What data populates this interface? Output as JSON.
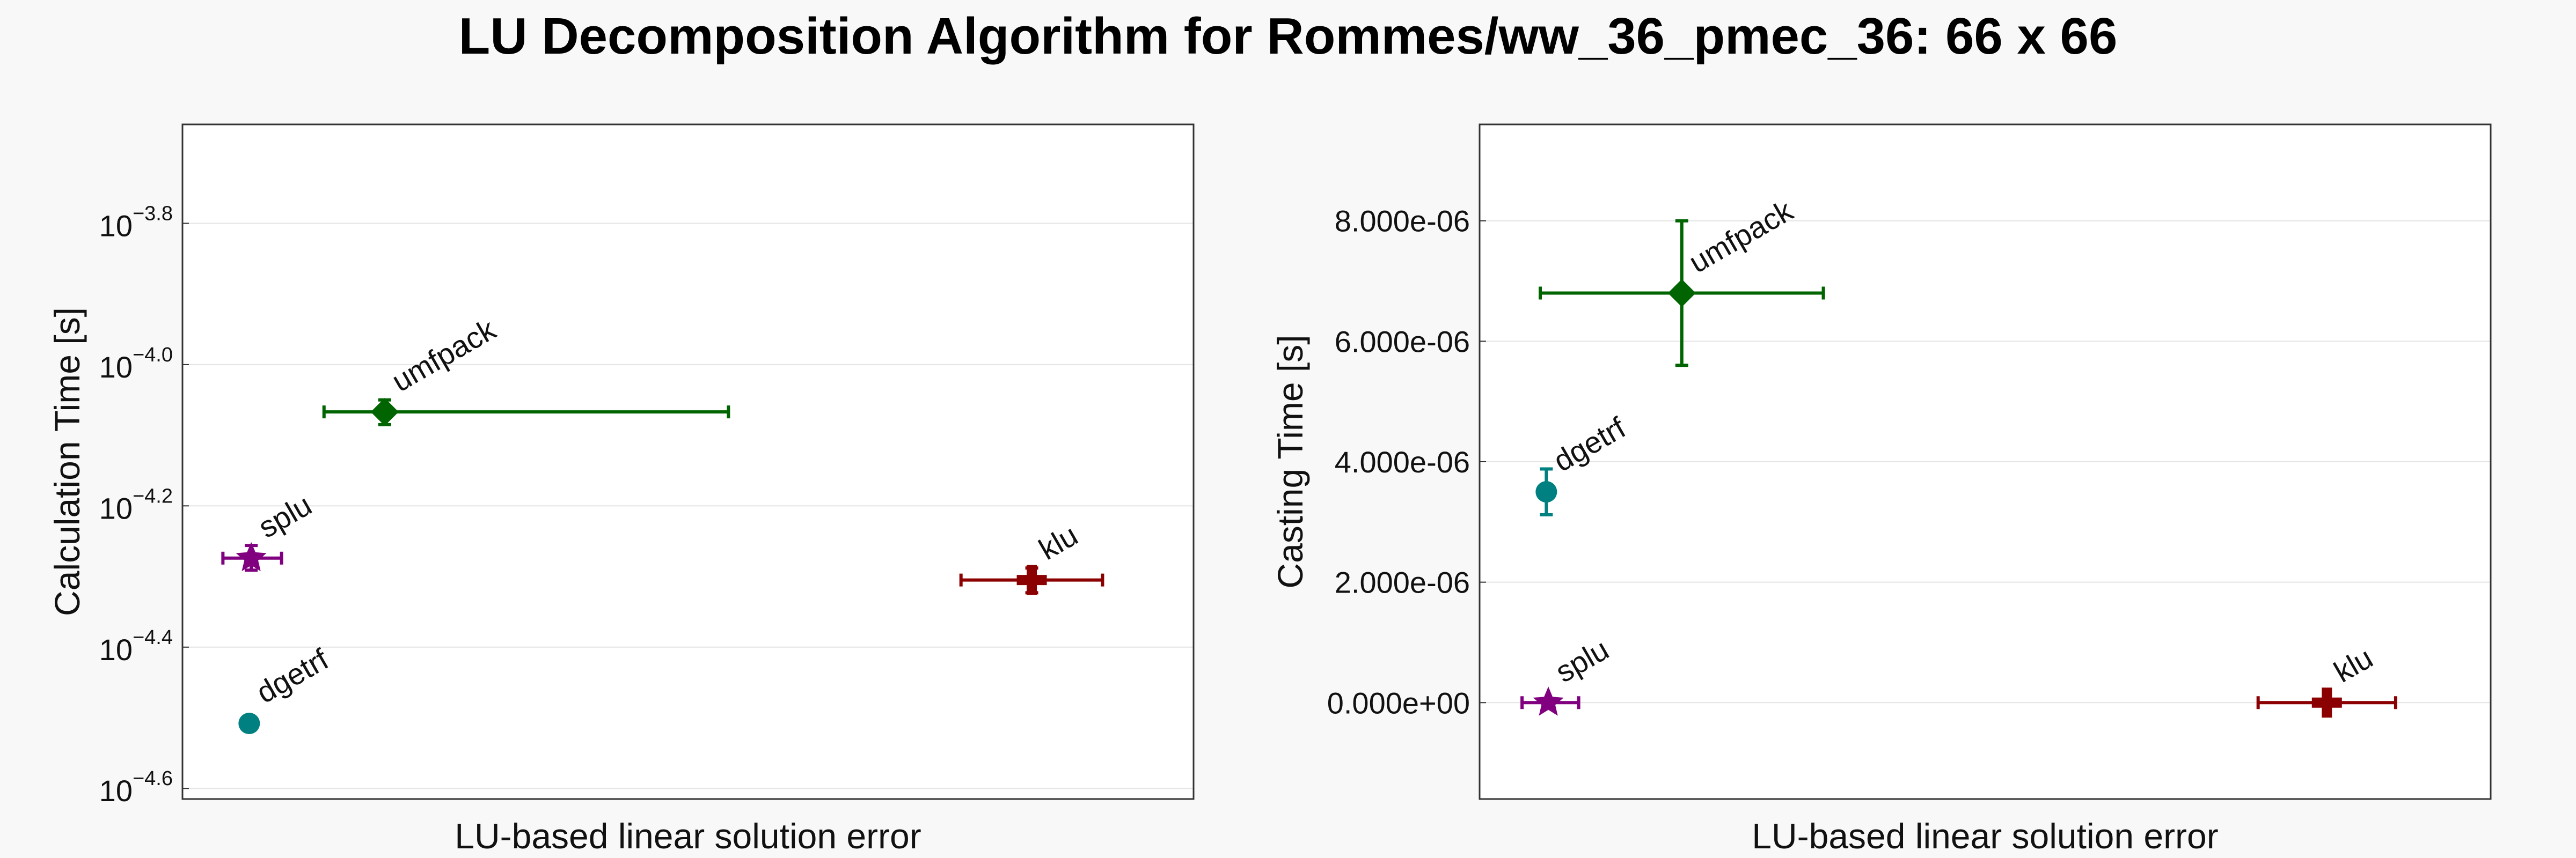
{
  "title": "LU Decomposition Algorithm for Rommes/ww_36_pmec_36: 66 x 66",
  "colors": {
    "background": "#f8f8f8",
    "plot_bg": "#ffffff",
    "grid": "#e4e4e4",
    "frame": "#333333"
  },
  "chart_data": [
    {
      "type": "scatter",
      "ylabel": "Calculation Time [s]",
      "xlabel": "LU-based linear solution error",
      "yscale": "log10",
      "ytick_format": "power",
      "ylim": [
        -4.615,
        -3.66
      ],
      "xlim": [
        0,
        1
      ],
      "yticks": [
        -4.6,
        -4.4,
        -4.2,
        -4.0,
        -3.8
      ],
      "grid": true,
      "points": [
        {
          "name": "umfpack",
          "x": 0.2,
          "y": -4.067,
          "xerr": [
            0.06,
            0.34
          ],
          "yerr": [
            0.018,
            0.017
          ],
          "marker": "diamond",
          "color": "#006400",
          "label": "umfpack"
        },
        {
          "name": "splu",
          "x": 0.068,
          "y": -4.274,
          "xerr": [
            0.028,
            0.03
          ],
          "yerr": [
            0.017,
            0.018
          ],
          "marker": "star",
          "color": "#800080",
          "label": "splu"
        },
        {
          "name": "klu",
          "x": 0.84,
          "y": -4.305,
          "xerr": [
            0.07,
            0.07
          ],
          "yerr": [
            0.018,
            0.017
          ],
          "marker": "cross",
          "color": "#8b0000",
          "label": "klu"
        },
        {
          "name": "dgetrf",
          "x": 0.066,
          "y": -4.508,
          "xerr": [
            0,
            0
          ],
          "yerr": [
            0,
            0
          ],
          "marker": "circle",
          "color": "#008080",
          "label": "dgetrf"
        }
      ]
    },
    {
      "type": "scatter",
      "ylabel": "Casting Time [s]",
      "xlabel": "LU-based linear solution error",
      "yscale": "linear",
      "ytick_format": "sci",
      "ylim": [
        -1.6e-06,
        9.6e-06
      ],
      "xlim": [
        0,
        1
      ],
      "yticks": [
        0,
        2e-06,
        4e-06,
        6e-06,
        8e-06
      ],
      "ytick_labels": [
        "0.000e+00",
        "2.000e-06",
        "4.000e-06",
        "6.000e-06",
        "8.000e-06"
      ],
      "grid": true,
      "points": [
        {
          "name": "umfpack",
          "x": 0.2,
          "y": 6.8e-06,
          "xerr": [
            0.14,
            0.14
          ],
          "yerr": [
            1.2e-06,
            1.2e-06
          ],
          "marker": "diamond",
          "color": "#006400",
          "label": "umfpack"
        },
        {
          "name": "dgetrf",
          "x": 0.066,
          "y": 3.5e-06,
          "xerr": [
            0,
            0
          ],
          "yerr": [
            3.8e-07,
            3.8e-07
          ],
          "marker": "circle",
          "color": "#008080",
          "label": "dgetrf"
        },
        {
          "name": "splu",
          "x": 0.068,
          "y": 0,
          "xerr": [
            0.026,
            0.03
          ],
          "yerr": [
            0,
            0
          ],
          "marker": "star",
          "color": "#800080",
          "label": "splu"
        },
        {
          "name": "klu",
          "x": 0.838,
          "y": 0,
          "xerr": [
            0.068,
            0.068
          ],
          "yerr": [
            0,
            0
          ],
          "marker": "cross",
          "color": "#8b0000",
          "label": "klu"
        }
      ]
    }
  ]
}
